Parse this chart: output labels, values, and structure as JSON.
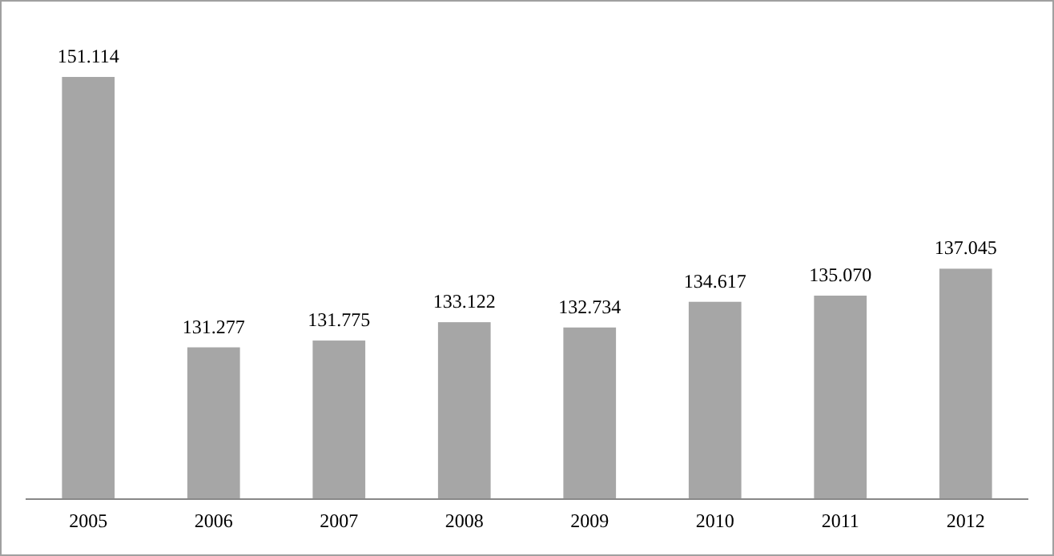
{
  "chart_data": {
    "type": "bar",
    "categories": [
      "2005",
      "2006",
      "2007",
      "2008",
      "2009",
      "2010",
      "2011",
      "2012"
    ],
    "values": [
      151.114,
      131.277,
      131.775,
      133.122,
      132.734,
      134.617,
      135.07,
      137.045
    ],
    "value_labels": [
      "151.114",
      "131.277",
      "131.775",
      "133.122",
      "132.734",
      "134.617",
      "135.070",
      "137.045"
    ],
    "color": "#a6a6a6",
    "ylim": [
      120.2,
      156.7
    ],
    "tick_labels": "x"
  }
}
